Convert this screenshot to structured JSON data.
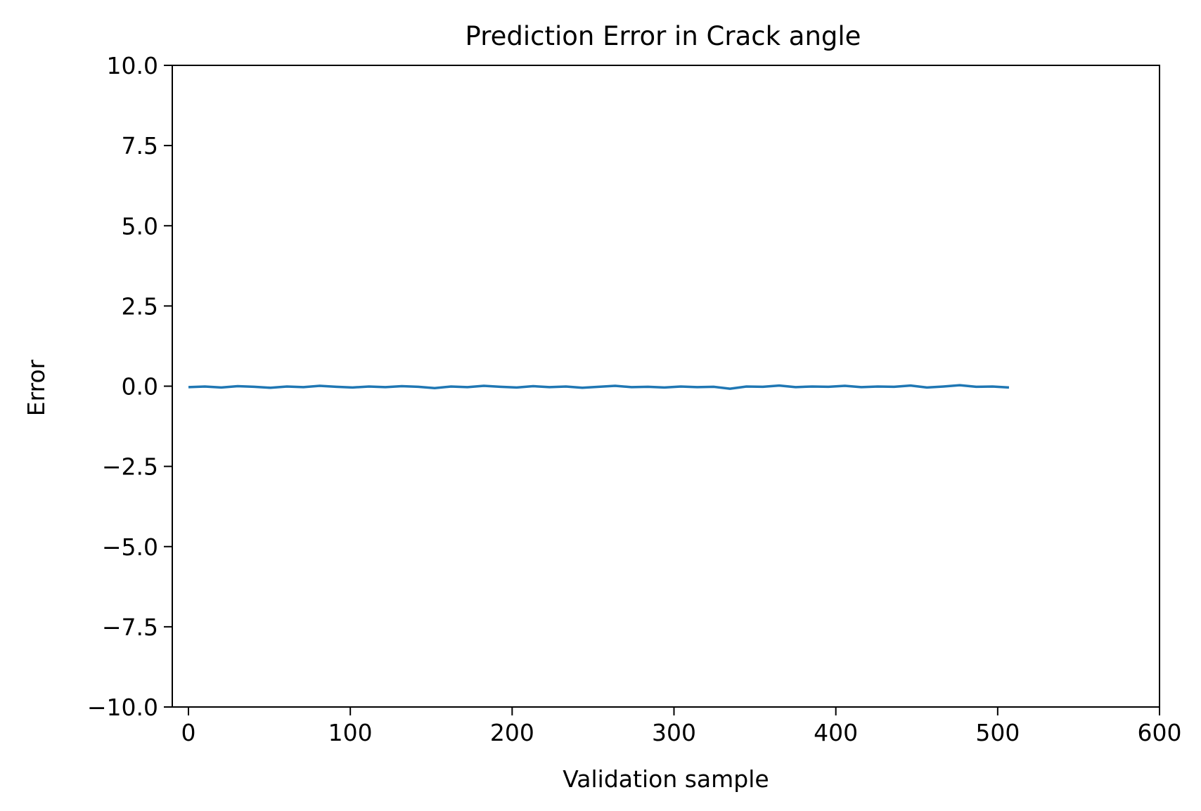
{
  "chart_data": {
    "type": "line",
    "title": "Prediction Error in Crack angle",
    "xlabel": "Validation sample",
    "ylabel": "Error",
    "xlim": [
      -10,
      600
    ],
    "ylim": [
      -10.0,
      10.0
    ],
    "xticks": [
      0,
      100,
      200,
      300,
      400,
      500,
      600
    ],
    "xtick_labels": [
      "0",
      "100",
      "200",
      "300",
      "400",
      "500",
      "600"
    ],
    "yticks": [
      10.0,
      7.5,
      5.0,
      2.5,
      0.0,
      -2.5,
      -5.0,
      -7.5,
      -10.0
    ],
    "ytick_labels": [
      "10.0",
      "7.5",
      "5.0",
      "2.5",
      "0.0",
      "−2.5",
      "−5.0",
      "−7.5",
      "−10.0"
    ],
    "grid": false,
    "series": [
      {
        "color": "#1f77b4",
        "x_start": 0,
        "x_end": 507,
        "y_min": -0.1,
        "y_max": 0.05,
        "description_values": [
          -0.03,
          -0.01,
          -0.04,
          0.0,
          -0.02,
          -0.05,
          -0.01,
          -0.03,
          0.01,
          -0.02,
          -0.04,
          -0.01,
          -0.03,
          0.0,
          -0.02,
          -0.06,
          -0.01,
          -0.03,
          0.01,
          -0.02,
          -0.04,
          0.0,
          -0.03,
          -0.01,
          -0.05,
          -0.02,
          0.01,
          -0.03,
          -0.02,
          -0.04,
          -0.01,
          -0.03,
          -0.02,
          -0.08,
          -0.01,
          -0.02,
          0.02,
          -0.03,
          -0.01,
          -0.02,
          0.01,
          -0.03,
          -0.01,
          -0.02,
          0.02,
          -0.04,
          -0.01,
          0.03,
          -0.02,
          -0.01,
          -0.04
        ]
      }
    ]
  }
}
